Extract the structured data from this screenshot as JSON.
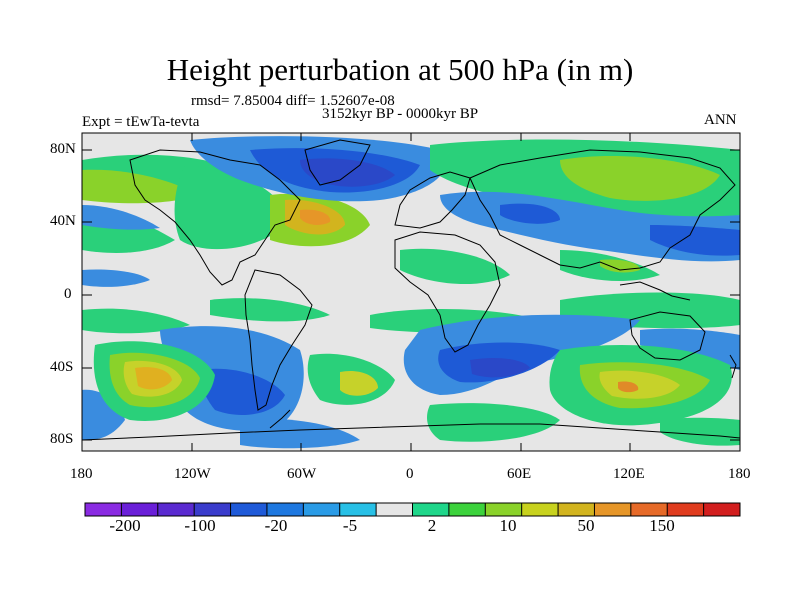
{
  "title": "Height perturbation at 500 hPa (in m)",
  "stats": "rmsd= 7.85004 diff= 1.52607e-08",
  "period": "3152kyr BP - 0000kyr BP",
  "experiment": "Expt = tEwTa-tevta",
  "season": "ANN",
  "lat_labels": [
    "80N",
    "40N",
    "0",
    "40S",
    "80S"
  ],
  "lon_labels": [
    "180",
    "120W",
    "60W",
    "0",
    "60E",
    "120E",
    "180"
  ],
  "colorbar": {
    "labels": [
      "-200",
      "-100",
      "-20",
      "-5",
      "2",
      "10",
      "50",
      "150"
    ],
    "colors": [
      "#8a2be2",
      "#6a1fd8",
      "#5a2ad0",
      "#3a3ccc",
      "#1f5ad8",
      "#1e78e0",
      "#2a9be6",
      "#28c0e6",
      "#e6e6e6",
      "#1fd68a",
      "#3cd23c",
      "#8ad22a",
      "#c8d21e",
      "#d2b41e",
      "#e69628",
      "#e66a28",
      "#e03c1e",
      "#d21e1e"
    ]
  },
  "legend": {
    "negative_small": "#3a8cdf",
    "negative_mid": "#1e5ad6",
    "negative_large": "#2a48c8",
    "neutral": "#e6e6e6",
    "positive_small": "#2ad07a",
    "positive_mid": "#7fd43c",
    "positive_large": "#c6d22a",
    "positive_peak": "#e0b020",
    "positive_max": "#e08a28"
  }
}
